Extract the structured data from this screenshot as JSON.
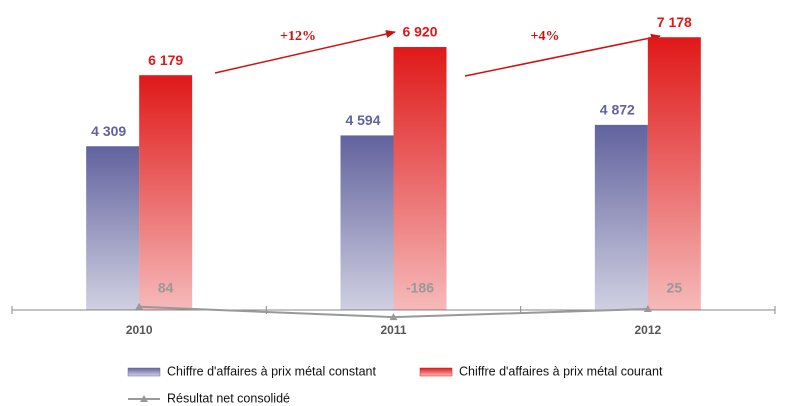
{
  "chart_data": {
    "type": "bar",
    "categories": [
      "2010",
      "2011",
      "2012"
    ],
    "series": [
      {
        "name": "Chiffre d'affaires à prix métal constant",
        "color": "#62629e",
        "values": [
          4309,
          4594,
          4872
        ],
        "value_labels": [
          "4 309",
          "4 594",
          "4 872"
        ]
      },
      {
        "name": "Chiffre d'affaires à prix métal courant",
        "color": "#e01818",
        "values": [
          6179,
          6920,
          7178
        ],
        "value_labels": [
          "6 179",
          "6 920",
          "7 178"
        ]
      },
      {
        "name": "Résultat net consolidé",
        "type": "line",
        "color": "#999999",
        "values": [
          84,
          -186,
          25
        ]
      }
    ],
    "annotations": [
      "+12%",
      "+4%"
    ],
    "ylim": [
      -500,
      8000
    ]
  }
}
